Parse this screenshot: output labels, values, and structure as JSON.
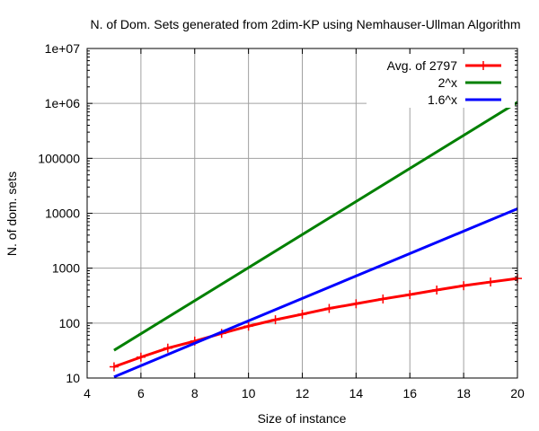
{
  "chart_data": {
    "type": "line",
    "title": "N. of Dom. Sets generated from 2dim-KP using Nemhauser-Ullman Algorithm",
    "xlabel": "Size of instance",
    "ylabel": "N. of dom. sets",
    "xlim": [
      4,
      20
    ],
    "ylim": [
      10,
      10000000
    ],
    "y_scale": "log",
    "grid": true,
    "legend_position": "top-right",
    "x_ticks": [
      {
        "value": 4,
        "label": "4"
      },
      {
        "value": 6,
        "label": "6"
      },
      {
        "value": 8,
        "label": "8"
      },
      {
        "value": 10,
        "label": "10"
      },
      {
        "value": 12,
        "label": "12"
      },
      {
        "value": 14,
        "label": "14"
      },
      {
        "value": 16,
        "label": "16"
      },
      {
        "value": 18,
        "label": "18"
      },
      {
        "value": 20,
        "label": "20"
      }
    ],
    "y_ticks": [
      {
        "value": 10,
        "label": "10"
      },
      {
        "value": 100,
        "label": "100"
      },
      {
        "value": 1000,
        "label": "1000"
      },
      {
        "value": 10000,
        "label": "10000"
      },
      {
        "value": 100000,
        "label": "100000"
      },
      {
        "value": 1000000,
        "label": "1e+06"
      },
      {
        "value": 10000000,
        "label": "1e+07"
      }
    ],
    "series": [
      {
        "name": "Avg. of 2797",
        "color": "#ff0000",
        "markers": true,
        "x": [
          5,
          6,
          7,
          8,
          9,
          10,
          11,
          12,
          13,
          14,
          15,
          16,
          17,
          18,
          19,
          20
        ],
        "y": [
          16,
          24,
          35,
          47,
          65,
          88,
          115,
          145,
          185,
          225,
          275,
          330,
          400,
          480,
          560,
          650
        ]
      },
      {
        "name": "2^x",
        "color": "#008000",
        "markers": false,
        "x": [
          5,
          20
        ],
        "y": [
          32,
          1048576
        ]
      },
      {
        "name": "1.6^x",
        "color": "#0000ff",
        "markers": false,
        "x": [
          5,
          20
        ],
        "y": [
          10.49,
          12089
        ]
      }
    ]
  }
}
